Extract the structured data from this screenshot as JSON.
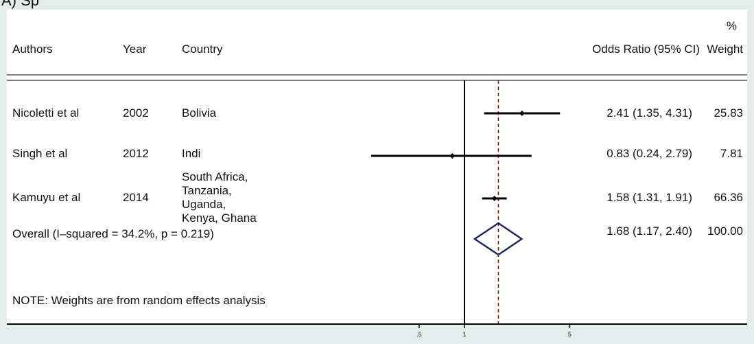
{
  "panel_label": "A) Sp",
  "headers": {
    "authors": "Authors",
    "year": "Year",
    "country": "Country",
    "or": "Odds Ratio (95% CI)",
    "pct": "%",
    "weight": "Weight"
  },
  "rows": [
    {
      "author": "Nicoletti et al",
      "year": "2002",
      "country": [
        "Bolivia"
      ],
      "or_text": "2.41 (1.35, 4.31)",
      "weight": "25.83"
    },
    {
      "author": "Singh et al",
      "year": "2012",
      "country": [
        "Indi"
      ],
      "or_text": "0.83 (0.24, 2.79)",
      "weight": "7.81"
    },
    {
      "author": "Kamuyu et al",
      "year": "2014",
      "country": [
        "South Africa,",
        "Tanzania,",
        "Uganda,",
        "Kenya, Ghana"
      ],
      "or_text": "1.58 (1.31, 1.91)",
      "weight": "66.36"
    }
  ],
  "overall": {
    "label": "Overall  (I–squared = 34.2%, p = 0.219)",
    "or_text": "1.68 (1.17, 2.40)",
    "weight": "100.00"
  },
  "note": "NOTE: Weights are from random effects analysis",
  "chart_data": {
    "type": "forest",
    "scale": "log",
    "null_line": 1,
    "pooled_line": 1.68,
    "ticks": [
      {
        "value": 0.5,
        "label": ".5"
      },
      {
        "value": 1,
        "label": "1"
      },
      {
        "value": 5,
        "label": "5"
      }
    ],
    "studies": [
      {
        "name": "Nicoletti et al",
        "or": 2.41,
        "lo": 1.35,
        "hi": 4.31,
        "weight": 25.83
      },
      {
        "name": "Singh et al",
        "or": 0.83,
        "lo": 0.24,
        "hi": 2.79,
        "weight": 7.81
      },
      {
        "name": "Kamuyu et al",
        "or": 1.58,
        "lo": 1.31,
        "hi": 1.91,
        "weight": 66.36
      }
    ],
    "pooled": {
      "or": 1.68,
      "lo": 1.17,
      "hi": 2.4
    },
    "colors": {
      "line": "#000000",
      "pooled_line": "#8b1a1a",
      "diamond": "#1f2a5a"
    }
  }
}
